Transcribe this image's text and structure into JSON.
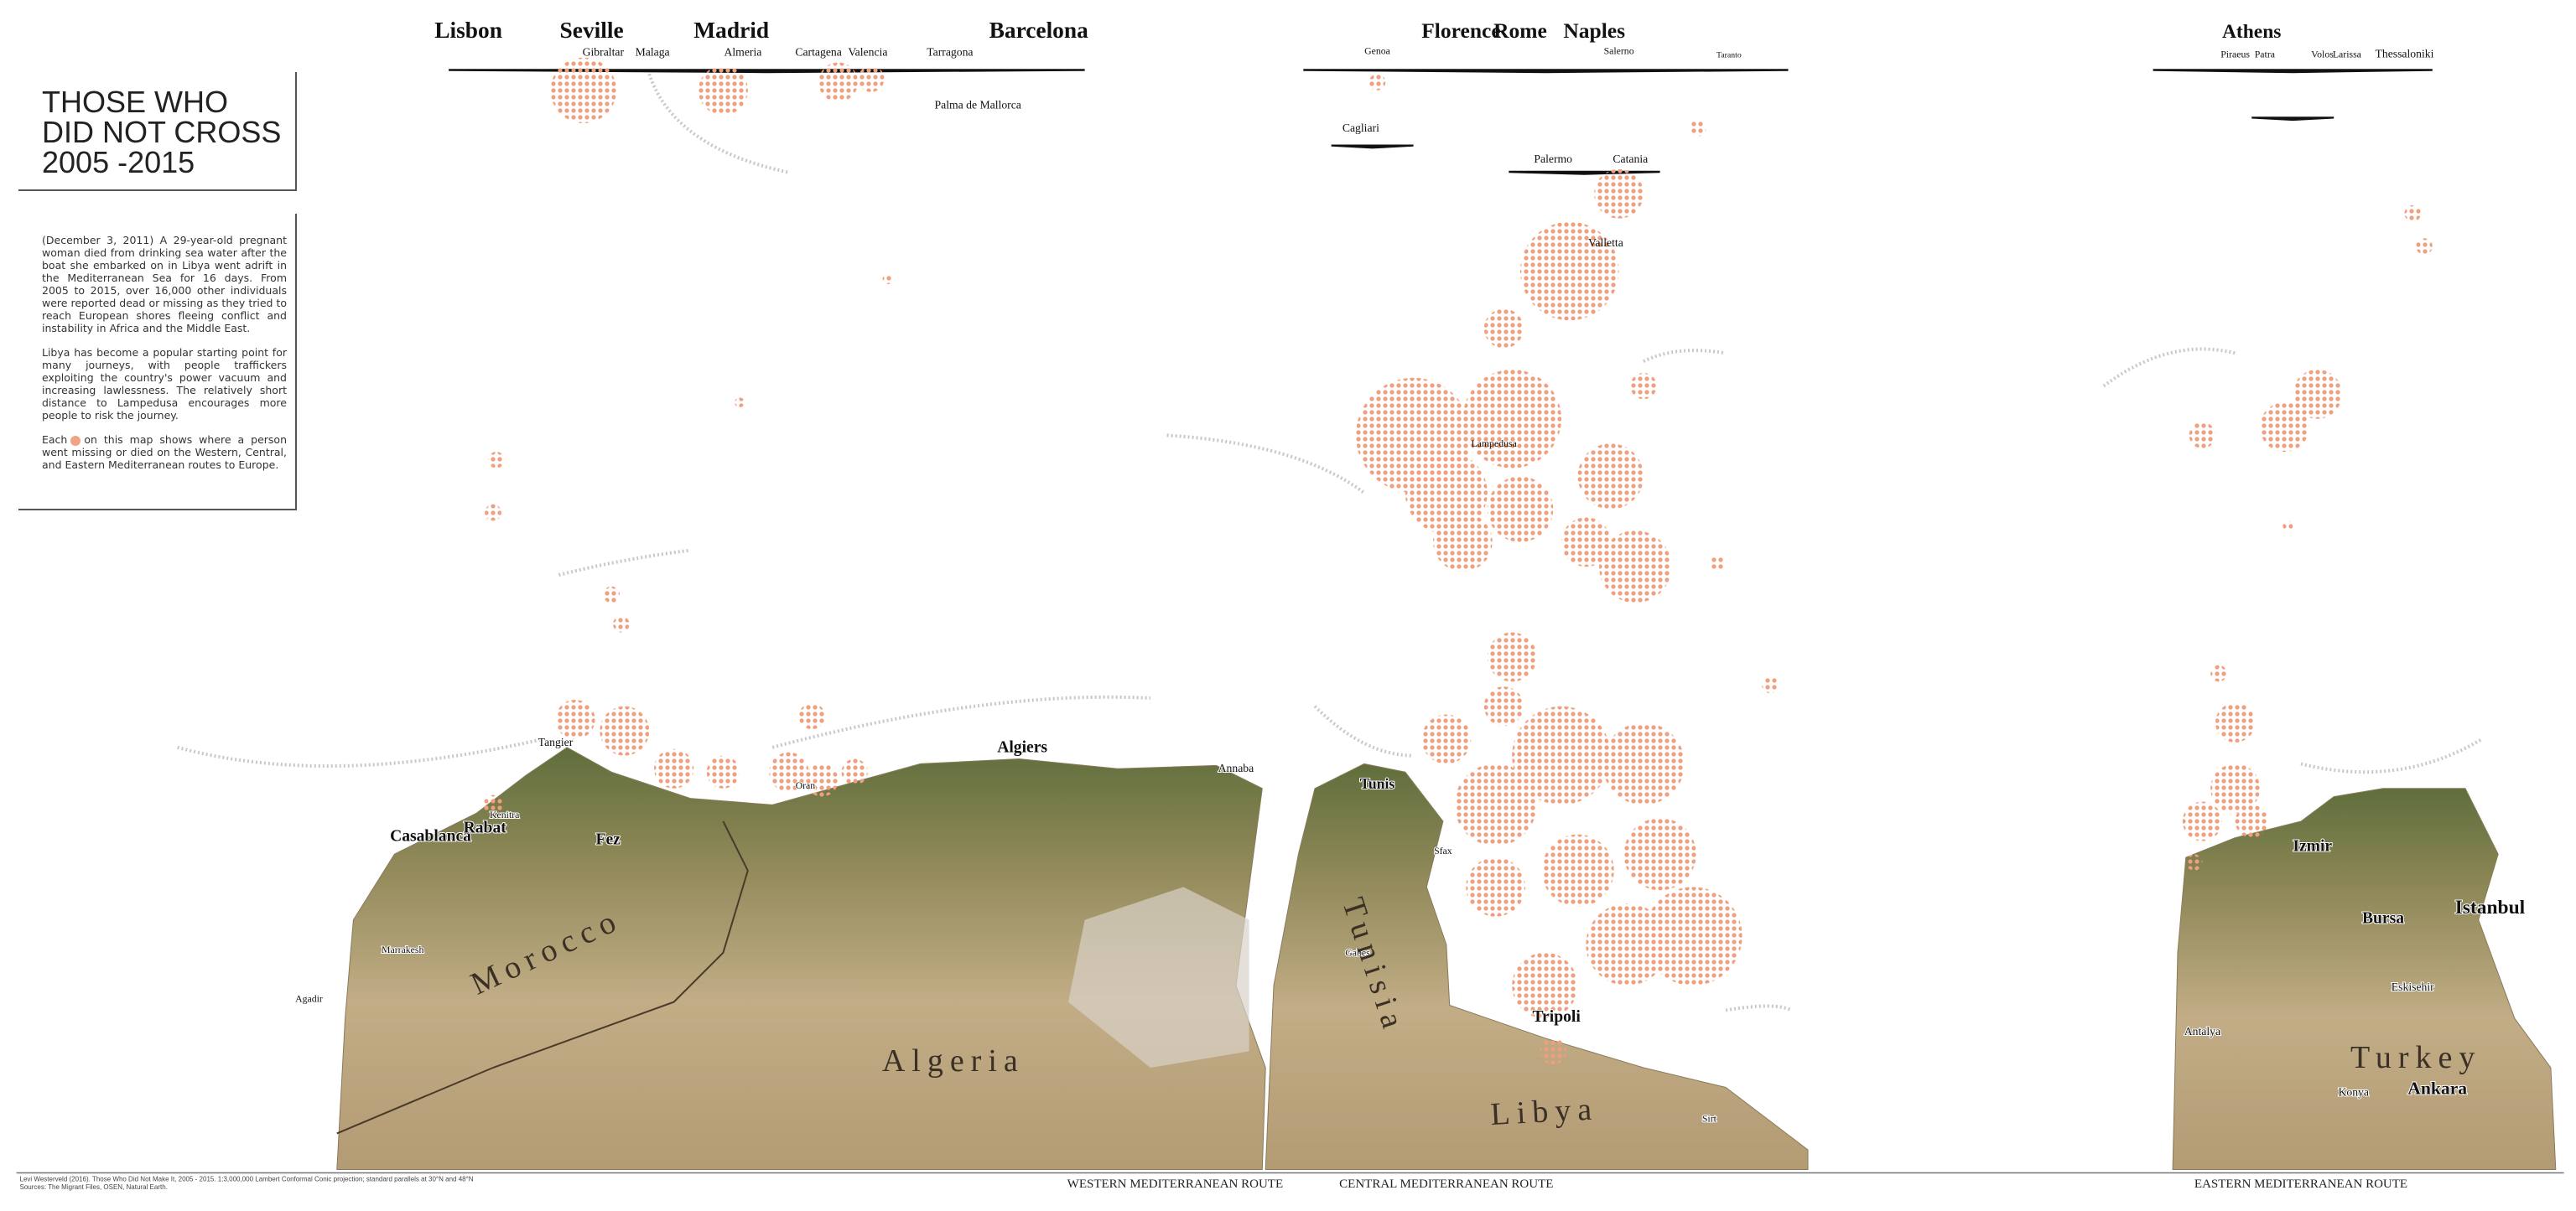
{
  "title": {
    "lines": [
      "THOSE WHO",
      "DID NOT CROSS",
      "2005 -2015"
    ]
  },
  "intro": {
    "paragraphs": [
      "(December 3, 2011) A 29-year-old pregnant woman died from drinking sea water after the boat she embarked on in Libya went adrift in the Mediterranean Sea for 16 days. From 2005 to 2015, over 16,000 other individuals were reported dead or missing as they tried to reach European shores fleeing conflict and instability in Africa and the Middle East.",
      "Libya has become a popular starting point for many journeys, with people traffickers exploiting the country's power vacuum and increasing lawlessness. The relatively short distance to Lampedusa encourages more people to risk the journey."
    ],
    "legend_before": "Each",
    "legend_after": "on this map shows where a person went missing or died on the Western, Central, and Eastern Mediterranean routes to Europe."
  },
  "panels": [
    {
      "route": "WESTERN MEDITERRANEAN ROUTE",
      "countries": [
        "Morocco",
        "Algeria"
      ],
      "cities": [
        "Lisbon",
        "Seville",
        "Madrid",
        "Barcelona",
        "Gibraltar",
        "Malaga",
        "Almeria",
        "Cartagena",
        "Valencia",
        "Tarragona",
        "Palma de Mallorca",
        "Tangier",
        "Casablanca",
        "Rabat",
        "Kenitra",
        "Fez",
        "Marrakesh",
        "Agadir",
        "Oran",
        "Algiers",
        "Annaba"
      ]
    },
    {
      "route": "CENTRAL MEDITERRANEAN ROUTE",
      "countries": [
        "Tunisia",
        "Libya"
      ],
      "cities": [
        "Florence",
        "Rome",
        "Naples",
        "Genoa",
        "Salerno",
        "Taranto",
        "Cagliari",
        "Palermo",
        "Catania",
        "Valletta",
        "Lampedusa",
        "Tunis",
        "Sfax",
        "Gabes",
        "Tripoli",
        "Sirt"
      ]
    },
    {
      "route": "EASTERN MEDITERRANEAN ROUTE",
      "countries": [
        "Turkey"
      ],
      "cities": [
        "Athens",
        "Piraeus",
        "Patra",
        "Volos",
        "Larissa",
        "Thessaloniki",
        "Izmir",
        "Bursa",
        "Istanbul",
        "Ankara",
        "Eskisehir",
        "Konya",
        "Antalya"
      ]
    }
  ],
  "credits": [
    "Levi Westerveld (2016). Those Who Did Not Make It, 2005 - 2015. 1:3,000,000 Lambert Conformal Conic projection; standard parallels at 30°N and 48°N",
    "Sources: The Migrant Files, OSEN, Natural Earth."
  ]
}
